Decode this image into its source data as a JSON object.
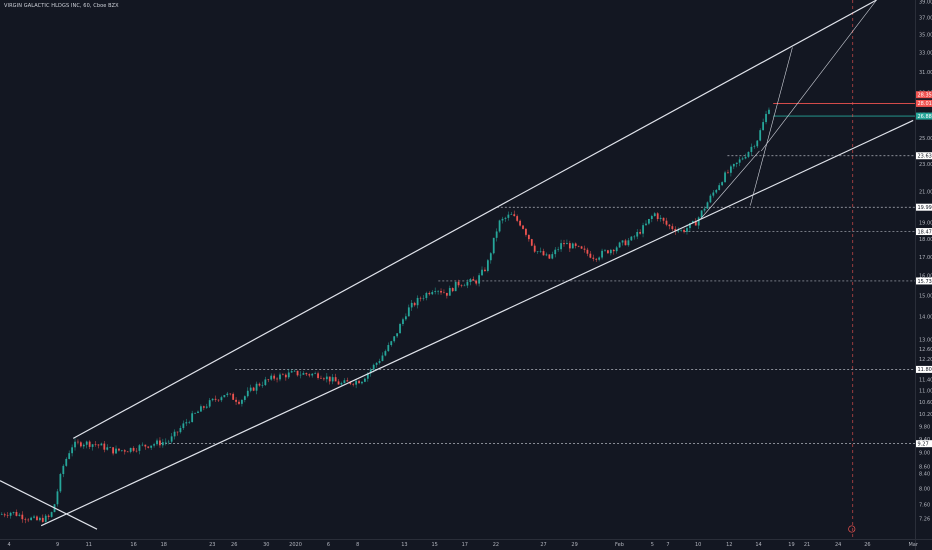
{
  "header": {
    "title": "VIRGIN GALACTIC HLDGS INC, 60, Cboe BZX"
  },
  "chart_data": {
    "type": "candlestick",
    "title": "VIRGIN GALACTIC HLDGS INC, 60, Cboe BZX",
    "ylim": [
      6.8,
      39.2
    ],
    "y_scale": "log",
    "y_ticks": [
      "39.00",
      "37.00",
      "35.00",
      "33.00",
      "31.00",
      "29.00",
      "27.00",
      "25.00",
      "23.00",
      "21.00",
      "19.00",
      "18.00",
      "17.00",
      "16.00",
      "15.00",
      "14.00",
      "13.00",
      "12.60",
      "12.20",
      "11.80",
      "11.40",
      "11.00",
      "10.60",
      "10.20",
      "9.80",
      "9.40",
      "9.00",
      "8.60",
      "8.40",
      "8.00",
      "7.60",
      "7.26"
    ],
    "x_ticks": [
      "4",
      "9",
      "11",
      "16",
      "18",
      "23",
      "26",
      "30",
      "2020",
      "6",
      "8",
      "13",
      "15",
      "17",
      "22",
      "27",
      "29",
      "Feb",
      "5",
      "7",
      "10",
      "12",
      "14",
      "19",
      "21",
      "24",
      "26",
      "Mar"
    ],
    "x_tick_frac": [
      0.01,
      0.063,
      0.097,
      0.146,
      0.179,
      0.232,
      0.256,
      0.291,
      0.323,
      0.359,
      0.391,
      0.442,
      0.475,
      0.508,
      0.542,
      0.594,
      0.628,
      0.677,
      0.713,
      0.73,
      0.763,
      0.797,
      0.829,
      0.865,
      0.882,
      0.916,
      0.948,
      0.998
    ],
    "price_labels": [
      {
        "text": "28.35",
        "kind": "red"
      },
      {
        "text": "28.01",
        "kind": "red"
      },
      {
        "text": "26.88",
        "kind": "green"
      },
      {
        "text": "23.63",
        "kind": "white"
      },
      {
        "text": "19.99",
        "kind": "white"
      },
      {
        "text": "18.47",
        "kind": "white"
      },
      {
        "text": "15.73",
        "kind": "white"
      },
      {
        "text": "11.80",
        "kind": "white"
      },
      {
        "text": "9.27",
        "kind": "white"
      }
    ],
    "levels": [
      {
        "price": 28.01,
        "color": "#ef5350",
        "x_start": 0.845
      },
      {
        "price": 26.88,
        "color": "#26a69a",
        "x_start": 0.845
      },
      {
        "price": 23.63,
        "color": "#b2b5be",
        "x_start": 0.795,
        "dashed": true
      },
      {
        "price": 19.99,
        "color": "#b2b5be",
        "x_start": 0.543,
        "dashed": true
      },
      {
        "price": 18.47,
        "color": "#b2b5be",
        "x_start": 0.748,
        "dashed": true
      },
      {
        "price": 15.73,
        "color": "#b2b5be",
        "x_start": 0.479,
        "dashed": true
      },
      {
        "price": 11.8,
        "color": "#b2b5be",
        "x_start": 0.257,
        "dashed": true
      },
      {
        "price": 9.27,
        "color": "#b2b5be",
        "x_start": 0.176,
        "dashed": true
      }
    ],
    "trendlines": [
      {
        "from": [
          0.08,
          9.43
        ],
        "to": [
          0.958,
          39.2
        ],
        "color": "#e0e3eb",
        "width": 1.2
      },
      {
        "from": [
          0.045,
          7.1
        ],
        "to": [
          0.998,
          26.5
        ],
        "color": "#e0e3eb",
        "width": 1.2
      },
      {
        "from": [
          0.0,
          8.22
        ],
        "to": [
          0.106,
          7.02
        ],
        "color": "#e0e3eb",
        "width": 1.2
      },
      {
        "from": [
          0.82,
          20.1
        ],
        "to": [
          0.866,
          33.6
        ],
        "color": "#d1d4dc",
        "width": 0.6
      },
      {
        "from": [
          0.832,
          24.0
        ],
        "to": [
          0.958,
          39.2
        ],
        "color": "#d1d4dc",
        "width": 0.6
      },
      {
        "from": [
          0.765,
          19.2
        ],
        "to": [
          0.83,
          24.0
        ],
        "color": "#d1d4dc",
        "width": 0.6
      }
    ],
    "vertical_marker_frac": 0.932,
    "anchors": [
      [
        0.0,
        7.36
      ],
      [
        0.012,
        7.42
      ],
      [
        0.025,
        7.32
      ],
      [
        0.04,
        7.22
      ],
      [
        0.055,
        7.3
      ],
      [
        0.06,
        7.65
      ],
      [
        0.068,
        8.55
      ],
      [
        0.078,
        9.2
      ],
      [
        0.09,
        9.3
      ],
      [
        0.105,
        9.25
      ],
      [
        0.125,
        9.05
      ],
      [
        0.14,
        9.1
      ],
      [
        0.165,
        9.25
      ],
      [
        0.185,
        9.35
      ],
      [
        0.205,
        10.0
      ],
      [
        0.225,
        10.5
      ],
      [
        0.245,
        10.9
      ],
      [
        0.262,
        10.65
      ],
      [
        0.28,
        11.2
      ],
      [
        0.3,
        11.5
      ],
      [
        0.32,
        11.65
      ],
      [
        0.35,
        11.6
      ],
      [
        0.372,
        11.25
      ],
      [
        0.395,
        11.4
      ],
      [
        0.415,
        12.2
      ],
      [
        0.43,
        13.0
      ],
      [
        0.445,
        14.3
      ],
      [
        0.46,
        14.9
      ],
      [
        0.475,
        15.4
      ],
      [
        0.488,
        15.1
      ],
      [
        0.5,
        15.6
      ],
      [
        0.52,
        15.7
      ],
      [
        0.532,
        16.5
      ],
      [
        0.545,
        19.0
      ],
      [
        0.558,
        19.5
      ],
      [
        0.57,
        18.9
      ],
      [
        0.585,
        17.4
      ],
      [
        0.6,
        16.9
      ],
      [
        0.615,
        17.8
      ],
      [
        0.63,
        17.5
      ],
      [
        0.65,
        17.0
      ],
      [
        0.67,
        17.5
      ],
      [
        0.69,
        18.0
      ],
      [
        0.705,
        18.8
      ],
      [
        0.715,
        19.6
      ],
      [
        0.73,
        18.8
      ],
      [
        0.745,
        18.5
      ],
      [
        0.76,
        19.0
      ],
      [
        0.775,
        20.5
      ],
      [
        0.79,
        22.0
      ],
      [
        0.805,
        23.0
      ],
      [
        0.818,
        24.0
      ],
      [
        0.828,
        25.0
      ],
      [
        0.835,
        26.5
      ],
      [
        0.842,
        28.1
      ]
    ]
  }
}
